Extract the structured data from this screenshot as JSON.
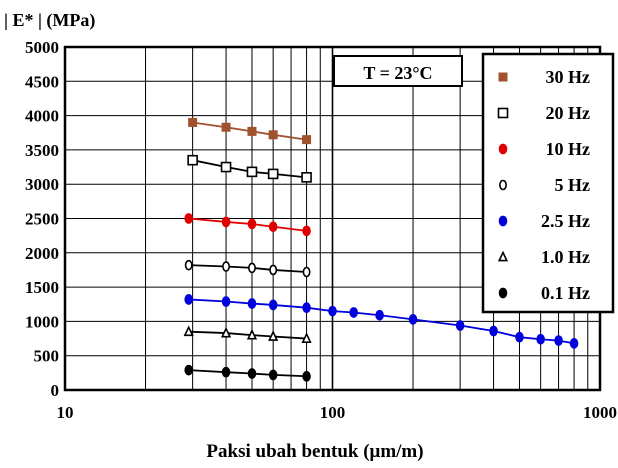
{
  "chart_data": {
    "type": "scatter",
    "ylabel": "| E* | (MPa)",
    "xlabel": "Paksi ubah bentuk  (μm/m)",
    "annotation": "T = 23°C",
    "x_scale": "log",
    "xlim": [
      10,
      1000
    ],
    "ylim": [
      0,
      5000
    ],
    "x_ticks": [
      "10",
      "100",
      "1000"
    ],
    "y_ticks": [
      "0",
      "500",
      "1000",
      "1500",
      "2000",
      "2500",
      "3000",
      "3500",
      "4000",
      "4500",
      "5000"
    ],
    "grid": true,
    "legend_position": "right",
    "series": [
      {
        "name": "30 Hz",
        "marker": "square-filled",
        "color": "#a0522d",
        "x": [
          30,
          40,
          50,
          60,
          80
        ],
        "y": [
          3900,
          3830,
          3770,
          3720,
          3650
        ]
      },
      {
        "name": "20 Hz",
        "marker": "square-open",
        "color": "#000000",
        "x": [
          30,
          40,
          50,
          60,
          80
        ],
        "y": [
          3350,
          3250,
          3180,
          3150,
          3100
        ]
      },
      {
        "name": "10 Hz",
        "marker": "ellipse-filled",
        "color": "#e00000",
        "x": [
          29,
          40,
          50,
          60,
          80
        ],
        "y": [
          2500,
          2450,
          2420,
          2380,
          2320
        ]
      },
      {
        "name": "5 Hz",
        "marker": "diamond-open",
        "color": "#000000",
        "x": [
          29,
          40,
          50,
          60,
          80
        ],
        "y": [
          1820,
          1800,
          1780,
          1750,
          1720
        ]
      },
      {
        "name": "2.5 Hz",
        "marker": "ellipse-filled",
        "color": "#0000dd",
        "x": [
          29,
          40,
          50,
          60,
          80,
          100,
          120,
          150,
          200,
          300,
          400,
          500,
          600,
          700,
          800
        ],
        "y": [
          1320,
          1290,
          1260,
          1240,
          1200,
          1150,
          1130,
          1090,
          1030,
          940,
          860,
          770,
          740,
          720,
          680
        ]
      },
      {
        "name": "1.0 Hz",
        "marker": "triangle-open",
        "color": "#000000",
        "x": [
          29,
          40,
          50,
          60,
          80
        ],
        "y": [
          850,
          830,
          800,
          780,
          750
        ]
      },
      {
        "name": "0.1 Hz",
        "marker": "ellipse-filled",
        "color": "#000000",
        "x": [
          29,
          40,
          50,
          60,
          80
        ],
        "y": [
          290,
          260,
          240,
          220,
          200
        ]
      }
    ]
  }
}
